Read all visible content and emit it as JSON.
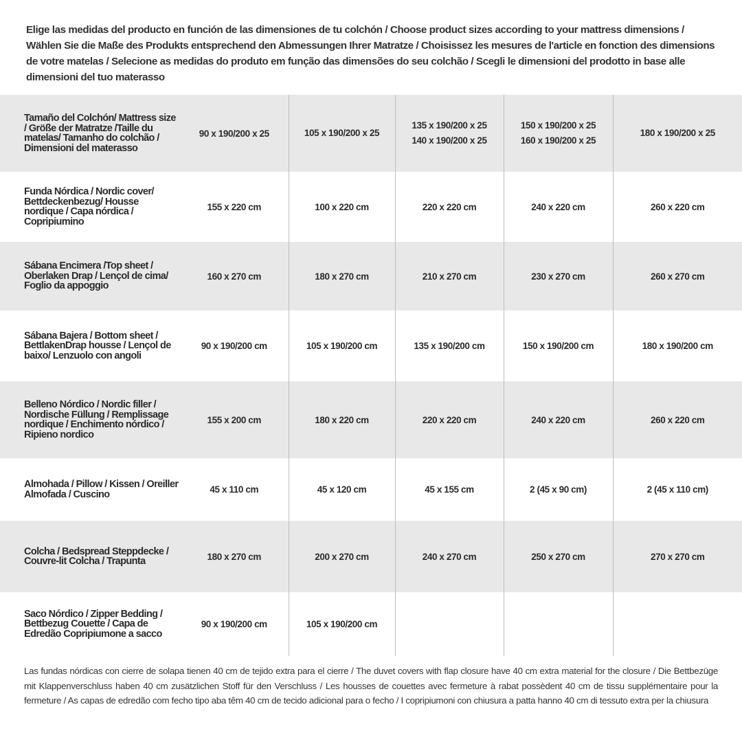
{
  "intro": "Elige las medidas del producto en función de las dimensiones de tu colchón / Choose product sizes according to your mattress dimensions / Wählen Sie die Maße des Produkts entsprechend den Abmessungen Ihrer Matratze / Choisissez les mesures de l'article en fonction des dimensions de votre matelas / Selecione as medidas do produto em função das dimensões do seu colchão / Scegli le dimensioni del prodotto in base alle dimensioni del tuo materasso",
  "header": {
    "label": "Tamaño del Colchón/ Mattress size / Größe der Matratze /Taille du matelas/ Tamanho do colchão / Dimensioni del materasso",
    "sizes": [
      "90 x 190/200 x 25",
      "105 x 190/200 x 25",
      "135 x 190/200 x 25",
      "140 x 190/200 x 25",
      "150 x 190/200 x 25",
      "160 x 190/200 x 25",
      "180 x 190/200 x 25"
    ]
  },
  "rows": [
    {
      "label": "Funda Nórdica /  Nordic cover/ Bettdeckenbezug/ Housse nordique  / Capa nórdica / Copripiumino",
      "values": [
        "155 x 220 cm",
        "100 x 220 cm",
        "220 x 220 cm",
        "240 x 220 cm",
        "260 x 220 cm"
      ]
    },
    {
      "label": "Sábana Encimera /Top sheet / Oberlaken Drap / Lençol de cima/ Foglio da appoggio",
      "values": [
        "160 x 270 cm",
        "180 x 270 cm",
        "210 x 270 cm",
        "230 x 270 cm",
        "260 x 270 cm"
      ]
    },
    {
      "label": "Sábana Bajera / Bottom sheet / BettlakenDrap housse / Lençol de baixo/ Lenzuolo con angoli",
      "values": [
        "90 x 190/200 cm",
        "105 x 190/200 cm",
        "135 x 190/200 cm",
        "150 x 190/200 cm",
        "180 x 190/200 cm"
      ]
    },
    {
      "label": "Belleno Nórdico / Nordic filler / Nordische Füllung / Remplissage nordique / Enchimento nórdico / Ripieno nordico",
      "values": [
        "155 x 200 cm",
        "180 x 220 cm",
        "220 x 220 cm",
        "240 x 220 cm",
        "260 x 220 cm"
      ]
    },
    {
      "label": "Almohada  / Pillow / Kissen / Oreiller Almofada / Cuscino",
      "values": [
        "45 x 110 cm",
        "45 x 120 cm",
        "45 x 155 cm",
        "2 (45 x 90 cm)",
        "2 (45 x 110 cm)"
      ]
    },
    {
      "label": "Colcha / Bedspread Steppdecke / Couvre-lit Colcha / Trapunta",
      "values": [
        "180 x 270 cm",
        "200 x 270 cm",
        "240 x 270 cm",
        "250 x 270 cm",
        "270 x 270 cm"
      ]
    },
    {
      "label": "Saco Nórdico / Zipper Bedding / Bettbezug Couette  / Capa de Edredão Copripiumone a sacco",
      "values": [
        "90 x 190/200 cm",
        "105 x 190/200 cm",
        "",
        "",
        ""
      ]
    }
  ],
  "footnote": "Las fundas nórdicas con cierre de solapa tienen 40 cm de tejido extra para el cierre  / The duvet covers with flap closure have 40 cm extra material for the closure / Die Bettbezüge mit Klappenverschluss haben 40 cm zusätzlichen Stoff für den Verschluss / Les housses de couettes avec fermeture à rabat possèdent 40 cm de tissu supplémentaire pour la fermeture / As capas de edredão com fecho tipo aba têm 40 cm de tecido adicional para o fecho / I copripiumoni con chiusura a patta hanno 40 cm di tessuto extra per la chiusura"
}
